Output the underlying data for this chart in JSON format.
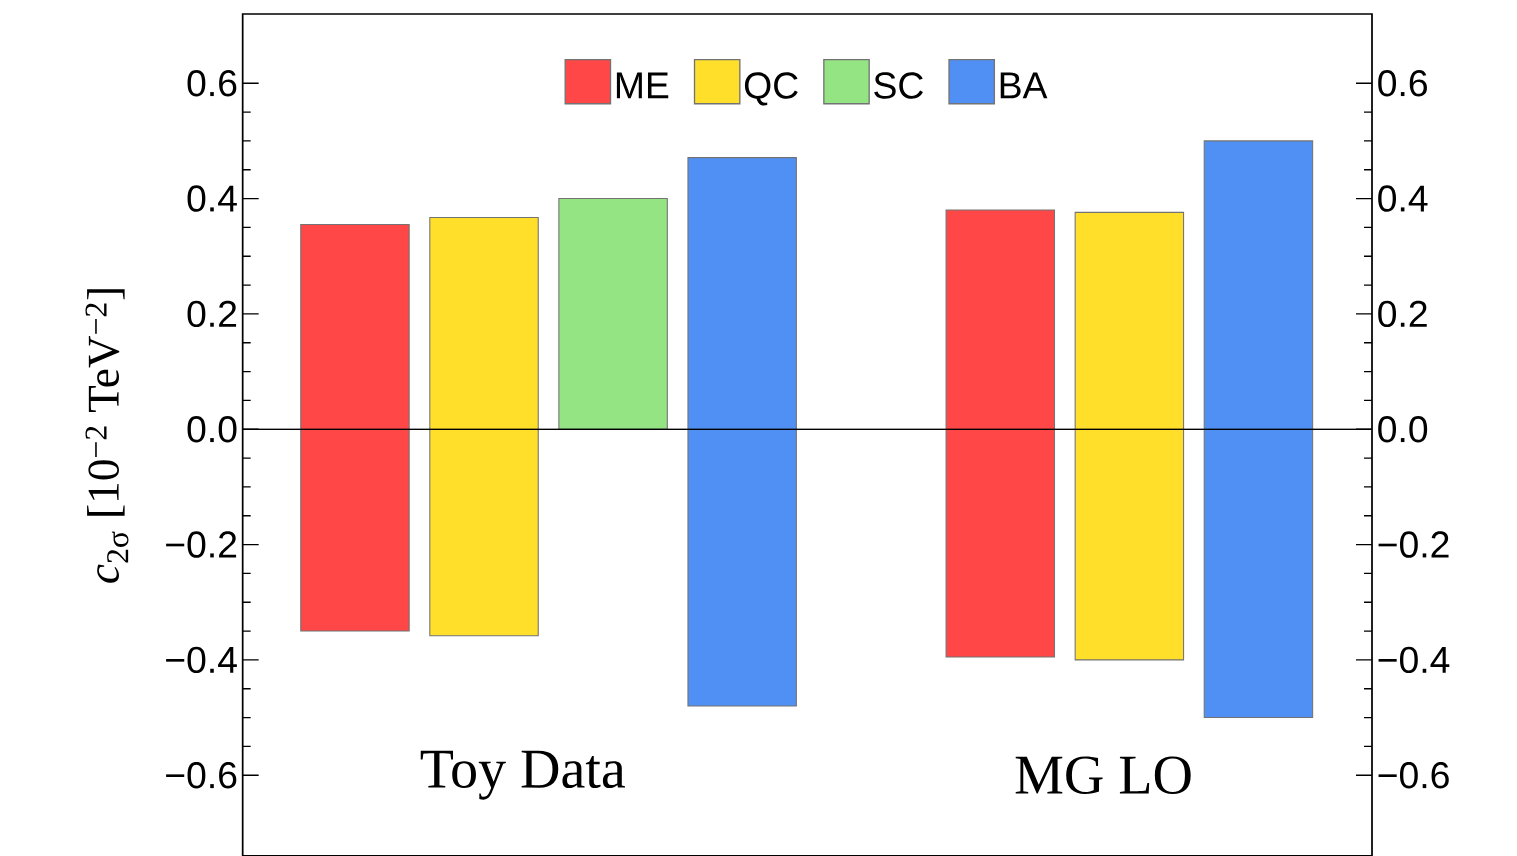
{
  "chart_data": {
    "type": "bar",
    "categories": [
      "Toy Data",
      "MG LO"
    ],
    "ylabel": "*c*$_{2σ}$ [10$^{−2}$ TeV$^{−2}$]",
    "series": [
      {
        "name": "ME",
        "color": "#ff4747",
        "base": [
          -0.35,
          -0.395
        ],
        "values": [
          0.705,
          0.775
        ]
      },
      {
        "name": "QC",
        "color": "#ffdf2a",
        "base": [
          -0.358,
          -0.4
        ],
        "values": [
          0.725,
          0.776
        ]
      },
      {
        "name": "SC",
        "color": "#94e483",
        "base": [
          0,
          null
        ],
        "values": [
          0.4,
          null
        ]
      },
      {
        "name": "BA",
        "color": "#5090f5",
        "base": [
          -0.48,
          -0.5
        ],
        "values": [
          0.951,
          1.0
        ]
      }
    ],
    "ylim": [
      -0.74,
      0.72
    ],
    "yticks": [
      {
        "value": -0.6,
        "label": "−0.6"
      },
      {
        "value": -0.4,
        "label": "−0.4"
      },
      {
        "value": -0.2,
        "label": "−0.2"
      },
      {
        "value": 0,
        "label": "0.0"
      },
      {
        "value": 0.2,
        "label": "0.2"
      },
      {
        "value": 0.4,
        "label": "0.4"
      },
      {
        "value": 0.6,
        "label": "0.6"
      }
    ],
    "ref_lines": [
      {
        "axis": "y",
        "value": 0,
        "color": "#000000"
      }
    ],
    "legend": "top",
    "grid": false
  }
}
